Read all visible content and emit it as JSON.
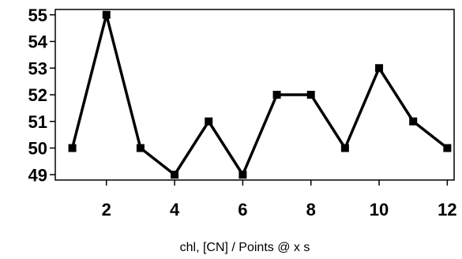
{
  "chart_data": {
    "type": "line",
    "title": "",
    "xlabel": "chl, [CN] / Points @ x s",
    "ylabel": "",
    "x": [
      1,
      2,
      3,
      4,
      5,
      6,
      7,
      8,
      9,
      10,
      11,
      12
    ],
    "series": [
      {
        "values": [
          50,
          55,
          50,
          49,
          51,
          49,
          52,
          52,
          50,
          53,
          51,
          50
        ]
      }
    ],
    "xlim": [
      0.5,
      12.2
    ],
    "ylim": [
      48.8,
      55.2
    ],
    "xticks": [
      2,
      4,
      6,
      8,
      10,
      12
    ],
    "yticks": [
      49,
      50,
      51,
      52,
      53,
      54,
      55
    ],
    "grid": false,
    "legend": "none",
    "marker": "square",
    "line_color": "#000000",
    "marker_color": "#000000"
  }
}
